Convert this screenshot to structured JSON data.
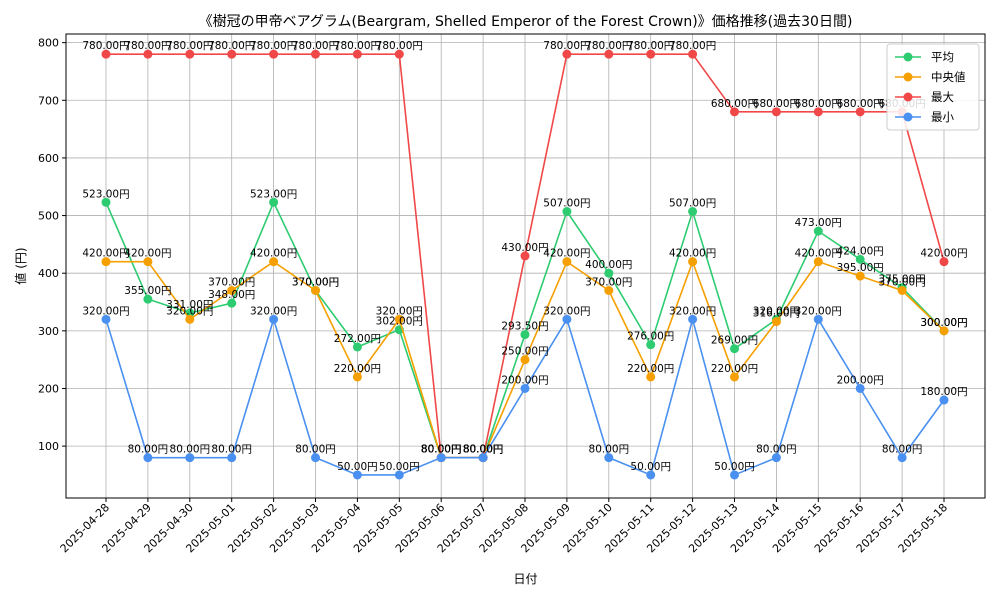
{
  "chart_data": {
    "type": "line",
    "title": "《樹冠の甲帝ベアグラム(Beargram, Shelled Emperor of the Forest Crown)》価格推移(過去30日間)",
    "xlabel": "日付",
    "ylabel": "値 (円)",
    "ylim": [
      10,
      815
    ],
    "yticks": [
      100,
      200,
      300,
      400,
      500,
      600,
      700,
      800
    ],
    "grid": true,
    "legend_position": "top-right",
    "value_suffix": "円",
    "categories": [
      "2025-04-28",
      "2025-04-29",
      "2025-04-30",
      "2025-05-01",
      "2025-05-02",
      "2025-05-03",
      "2025-05-04",
      "2025-05-05",
      "2025-05-06",
      "2025-05-07",
      "2025-05-08",
      "2025-05-09",
      "2025-05-10",
      "2025-05-11",
      "2025-05-12",
      "2025-05-13",
      "2025-05-14",
      "2025-05-15",
      "2025-05-16",
      "2025-05-17",
      "2025-05-18"
    ],
    "series": [
      {
        "name": "平均",
        "color": "#2ecc71",
        "values": [
          523,
          355,
          331,
          348,
          523,
          370,
          272,
          302,
          80,
          80,
          293.5,
          507,
          400,
          276,
          507,
          269,
          320,
          473,
          424,
          375,
          300
        ]
      },
      {
        "name": "中央値",
        "color": "#f5a000",
        "values": [
          420,
          420,
          320,
          370,
          420,
          370,
          220,
          320,
          80,
          80,
          250,
          420,
          370,
          220,
          420,
          220,
          316,
          420,
          395,
          370,
          300
        ]
      },
      {
        "name": "最大",
        "color": "#f04848",
        "values": [
          780,
          780,
          780,
          780,
          780,
          780,
          780,
          780,
          80,
          80,
          430,
          780,
          780,
          780,
          780,
          680,
          680,
          680,
          680,
          680,
          420
        ]
      },
      {
        "name": "最小",
        "color": "#4a90f0",
        "values": [
          320,
          80,
          80,
          80,
          320,
          80,
          50,
          50,
          80,
          80,
          200,
          320,
          80,
          50,
          320,
          50,
          80,
          320,
          200,
          80,
          180
        ]
      }
    ]
  }
}
